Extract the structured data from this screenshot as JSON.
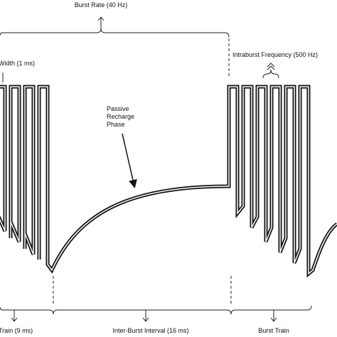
{
  "labels": {
    "burst_rate": "Burst Rate (40 Hz)",
    "pulse_width": "Width (1 ms)",
    "intraburst_frequency": "Intraburst Frequency (500 Hz)",
    "passive_recharge": [
      "Passive",
      "Recharge",
      "Phase"
    ],
    "burst_train_left": "Train (9 ms)",
    "inter_burst_interval": "Inter-Burst Interval (16 ms)",
    "burst_train_right": "Burst Train"
  }
}
